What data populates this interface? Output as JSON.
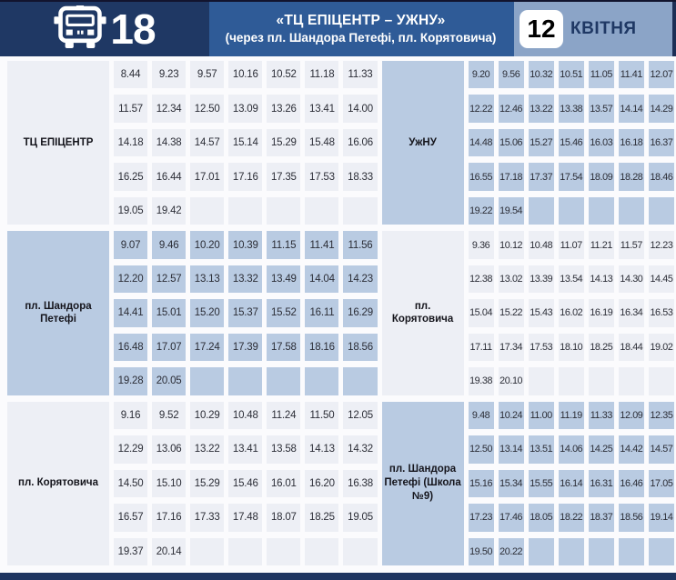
{
  "header": {
    "route_number": "18",
    "title": "«ТЦ ЕПІЦЕНТР – УЖНУ»",
    "subtitle": "(через пл. Шандора Петефі, пл. Корятовича)",
    "date_day": "12",
    "date_month": "КВІТНЯ"
  },
  "colors": {
    "dark_navy": "#1f3864",
    "mid_blue": "#2f5b97",
    "light_blue": "#8ba4c7",
    "cell_blue": "#b9cbe2",
    "cell_light": "#edeff5",
    "time_text": "#2b2d36"
  },
  "timetable": {
    "blocks": [
      {
        "station": "ТЦ ЕПІЦЕНТР",
        "side": "left",
        "tone": "light",
        "rows": [
          [
            "8.44",
            "9.23",
            "9.57",
            "10.16",
            "10.52",
            "11.18",
            "11.33"
          ],
          [
            "11.57",
            "12.34",
            "12.50",
            "13.09",
            "13.26",
            "13.41",
            "14.00"
          ],
          [
            "14.18",
            "14.38",
            "14.57",
            "15.14",
            "15.29",
            "15.48",
            "16.06"
          ],
          [
            "16.25",
            "16.44",
            "17.01",
            "17.16",
            "17.35",
            "17.53",
            "18.33"
          ],
          [
            "19.05",
            "19.42",
            "",
            "",
            "",
            "",
            ""
          ]
        ]
      },
      {
        "station": "УжНУ",
        "side": "right",
        "tone": "blue",
        "rows": [
          [
            "9.20",
            "9.56",
            "10.32",
            "10.51",
            "11.05",
            "11.41",
            "12.07"
          ],
          [
            "12.22",
            "12.46",
            "13.22",
            "13.38",
            "13.57",
            "14.14",
            "14.29"
          ],
          [
            "14.48",
            "15.06",
            "15.27",
            "15.46",
            "16.03",
            "16.18",
            "16.37"
          ],
          [
            "16.55",
            "17.18",
            "17.37",
            "17.54",
            "18.09",
            "18.28",
            "18.46"
          ],
          [
            "19.22",
            "19.54",
            "",
            "",
            "",
            "",
            ""
          ]
        ]
      },
      {
        "station": "пл. Шандора Петефі",
        "side": "left",
        "tone": "blue",
        "rows": [
          [
            "9.07",
            "9.46",
            "10.20",
            "10.39",
            "11.15",
            "11.41",
            "11.56"
          ],
          [
            "12.20",
            "12.57",
            "13.13",
            "13.32",
            "13.49",
            "14.04",
            "14.23"
          ],
          [
            "14.41",
            "15.01",
            "15.20",
            "15.37",
            "15.52",
            "16.11",
            "16.29"
          ],
          [
            "16.48",
            "17.07",
            "17.24",
            "17.39",
            "17.58",
            "18.16",
            "18.56"
          ],
          [
            "19.28",
            "20.05",
            "",
            "",
            "",
            "",
            ""
          ]
        ]
      },
      {
        "station": "пл. Корятовича",
        "side": "right",
        "tone": "light",
        "rows": [
          [
            "9.36",
            "10.12",
            "10.48",
            "11.07",
            "11.21",
            "11.57",
            "12.23"
          ],
          [
            "12.38",
            "13.02",
            "13.39",
            "13.54",
            "14.13",
            "14.30",
            "14.45"
          ],
          [
            "15.04",
            "15.22",
            "15.43",
            "16.02",
            "16.19",
            "16.34",
            "16.53"
          ],
          [
            "17.11",
            "17.34",
            "17.53",
            "18.10",
            "18.25",
            "18.44",
            "19.02"
          ],
          [
            "19.38",
            "20.10",
            "",
            "",
            "",
            "",
            ""
          ]
        ]
      },
      {
        "station": "пл. Корятовича",
        "side": "left",
        "tone": "light",
        "rows": [
          [
            "9.16",
            "9.52",
            "10.29",
            "10.48",
            "11.24",
            "11.50",
            "12.05"
          ],
          [
            "12.29",
            "13.06",
            "13.22",
            "13.41",
            "13.58",
            "14.13",
            "14.32"
          ],
          [
            "14.50",
            "15.10",
            "15.29",
            "15.46",
            "16.01",
            "16.20",
            "16.38"
          ],
          [
            "16.57",
            "17.16",
            "17.33",
            "17.48",
            "18.07",
            "18.25",
            "19.05"
          ],
          [
            "19.37",
            "20.14",
            "",
            "",
            "",
            "",
            ""
          ]
        ]
      },
      {
        "station": "пл. Шандора Петефі (Школа №9)",
        "side": "right",
        "tone": "blue",
        "rows": [
          [
            "9.48",
            "10.24",
            "11.00",
            "11.19",
            "11.33",
            "12.09",
            "12.35"
          ],
          [
            "12.50",
            "13.14",
            "13.51",
            "14.06",
            "14.25",
            "14.42",
            "14.57"
          ],
          [
            "15.16",
            "15.34",
            "15.55",
            "16.14",
            "16.31",
            "16.46",
            "17.05"
          ],
          [
            "17.23",
            "17.46",
            "18.05",
            "18.22",
            "18.37",
            "18.56",
            "19.14"
          ],
          [
            "19.50",
            "20.22",
            "",
            "",
            "",
            "",
            ""
          ]
        ]
      }
    ]
  }
}
